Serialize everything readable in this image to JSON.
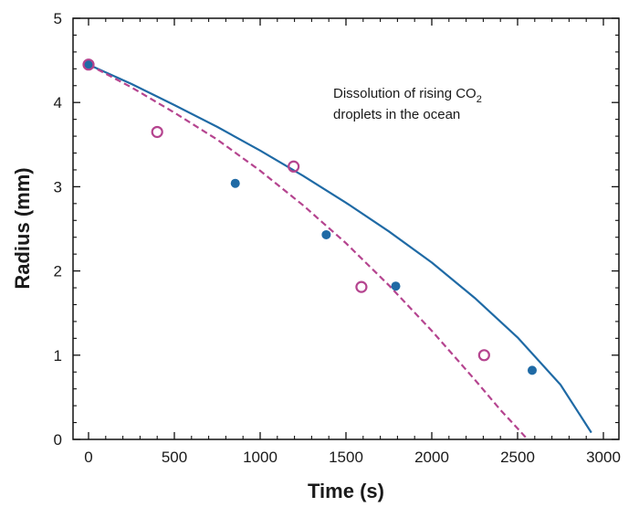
{
  "chart_data": {
    "type": "scatter",
    "title": "",
    "xlabel": "Time (s)",
    "ylabel": "Radius (mm)",
    "xlim": [
      0,
      3000
    ],
    "ylim": [
      0,
      5
    ],
    "x_ticks": [
      0,
      500,
      1000,
      1500,
      2000,
      2500,
      3000
    ],
    "y_ticks": [
      0,
      1,
      2,
      3,
      4,
      5
    ],
    "grid": false,
    "annotation": {
      "line1_prefix": "Dissolution of rising CO",
      "line1_subscript": "2",
      "line2": "droplets in the ocean"
    },
    "series": [
      {
        "kind": "points",
        "marker": "filled-circle",
        "color": "#1f6aa5",
        "x": [
          0,
          855,
          1385,
          1790,
          2585
        ],
        "y": [
          4.45,
          3.04,
          2.43,
          1.82,
          0.82
        ]
      },
      {
        "kind": "points",
        "marker": "open-circle",
        "color": "#b5448f",
        "x": [
          0,
          400,
          1195,
          1590,
          2305
        ],
        "y": [
          4.45,
          3.65,
          3.24,
          1.81,
          1.0
        ]
      },
      {
        "kind": "line",
        "style": "solid",
        "color": "#1f6aa5",
        "x": [
          0,
          250,
          500,
          750,
          1000,
          1250,
          1500,
          1750,
          2000,
          2250,
          2500,
          2750,
          2930
        ],
        "y": [
          4.45,
          4.22,
          3.97,
          3.71,
          3.43,
          3.13,
          2.81,
          2.47,
          2.1,
          1.68,
          1.21,
          0.65,
          0.08
        ]
      },
      {
        "kind": "line",
        "style": "dashed",
        "color": "#b5448f",
        "x": [
          0,
          250,
          500,
          750,
          1000,
          1250,
          1500,
          1750,
          2000,
          2250,
          2400,
          2500,
          2580
        ],
        "y": [
          4.45,
          4.18,
          3.88,
          3.56,
          3.19,
          2.78,
          2.33,
          1.83,
          1.29,
          0.71,
          0.35,
          0.13,
          -0.05
        ]
      }
    ]
  }
}
